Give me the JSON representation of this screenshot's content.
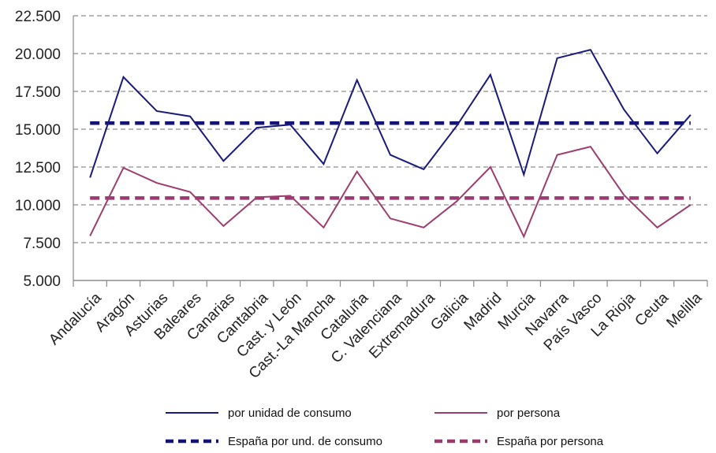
{
  "chart_data": {
    "type": "line",
    "categories": [
      "Andalucía",
      "Aragón",
      "Asturias",
      "Baleares",
      "Canarias",
      "Cantabria",
      "Cast. y León",
      "Cast.-La Mancha",
      "Cataluña",
      "C. Valenciana",
      "Extremadura",
      "Galicia",
      "Madrid",
      "Murcia",
      "Navarra",
      "País Vasco",
      "La Rioja",
      "Ceuta",
      "Melilla"
    ],
    "series": [
      {
        "name": "por unidad de consumo",
        "color": "#1a1a7e",
        "style": "solid",
        "values": [
          11800,
          18450,
          16200,
          15850,
          12900,
          15100,
          15300,
          12700,
          18250,
          13300,
          12350,
          15250,
          18600,
          12000,
          19700,
          20250,
          16300,
          13400,
          15950
        ]
      },
      {
        "name": "por persona",
        "color": "#9e3d6e",
        "style": "solid",
        "values": [
          7950,
          12450,
          11450,
          10850,
          8600,
          10500,
          10600,
          8500,
          12200,
          9100,
          8500,
          10250,
          12500,
          7900,
          13300,
          13850,
          10650,
          8500,
          10000
        ]
      },
      {
        "name": "España por und. de consumo",
        "color": "#141477",
        "style": "dashed",
        "values": [
          15400,
          15400,
          15400,
          15400,
          15400,
          15400,
          15400,
          15400,
          15400,
          15400,
          15400,
          15400,
          15400,
          15400,
          15400,
          15400,
          15400,
          15400,
          15400
        ]
      },
      {
        "name": "España por persona",
        "color": "#9b3a70",
        "style": "dashed",
        "values": [
          10450,
          10450,
          10450,
          10450,
          10450,
          10450,
          10450,
          10450,
          10450,
          10450,
          10450,
          10450,
          10450,
          10450,
          10450,
          10450,
          10450,
          10450,
          10450
        ]
      }
    ],
    "ylim": [
      5000,
      22500
    ],
    "yticks": [
      5000,
      7500,
      10000,
      12500,
      15000,
      17500,
      20000,
      22500
    ],
    "ytick_labels": [
      "5.000",
      "7.500",
      "10.000",
      "12.500",
      "15.000",
      "17.500",
      "20.000",
      "22.500"
    ],
    "grid": "horizontal dashed",
    "legend_position": "bottom"
  }
}
